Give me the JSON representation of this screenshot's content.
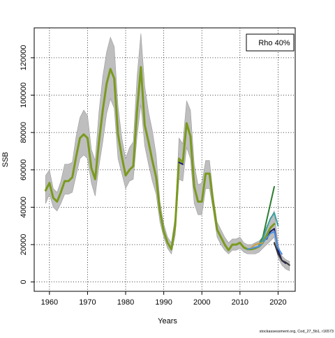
{
  "chart_data": {
    "type": "line",
    "title": "",
    "xlabel": "Years",
    "ylabel": "SSB",
    "xlim": [
      1956,
      2024.5
    ],
    "ylim": [
      -5000,
      136000
    ],
    "x_ticks": [
      1960,
      1970,
      1980,
      1990,
      2000,
      2010,
      2020
    ],
    "x_tick_labels": [
      "1960",
      "1970",
      "1980",
      "1990",
      "2000",
      "2010",
      "2020"
    ],
    "y_ticks": [
      0,
      20000,
      40000,
      60000,
      80000,
      100000,
      120000
    ],
    "y_tick_labels": [
      "0",
      "20000",
      "40000",
      "60000",
      "80000",
      "100000",
      "120000"
    ],
    "grid": true,
    "legend": {
      "position": "top-right",
      "text": "Rho 40%"
    },
    "footnote": "stockassessment.org, Cod_27_5b1, r16573",
    "colors": {
      "band": "#bebebe",
      "main": "#7a9a1e",
      "peel1": "#1a1a6e",
      "peel2": "#333333",
      "peel3": "#2e7d32",
      "peel4": "#3aa0a0",
      "peel5": "#4a90e2",
      "peel6": "#c8a040"
    },
    "confidence_band": {
      "x": [
        1959,
        1960,
        1961,
        1962,
        1963,
        1964,
        1965,
        1966,
        1967,
        1968,
        1969,
        1970,
        1971,
        1972,
        1973,
        1974,
        1975,
        1976,
        1977,
        1978,
        1979,
        1980,
        1981,
        1982,
        1983,
        1984,
        1985,
        1986,
        1987,
        1988,
        1989,
        1990,
        1991,
        1992,
        1993,
        1994,
        1995,
        1996,
        1997,
        1998,
        1999,
        2000,
        2001,
        2002,
        2003,
        2004,
        2005,
        2006,
        2007,
        2008,
        2009,
        2010,
        2011,
        2012,
        2013,
        2014,
        2015,
        2016,
        2017,
        2018,
        2019,
        2020,
        2021,
        2022,
        2023
      ],
      "lower": [
        42000,
        47000,
        40000,
        38000,
        42000,
        47000,
        47000,
        48000,
        57000,
        66000,
        68000,
        66000,
        53000,
        46000,
        62000,
        75000,
        90000,
        98000,
        93000,
        66000,
        58000,
        50000,
        54000,
        55000,
        78000,
        95000,
        73000,
        63000,
        54000,
        47000,
        32000,
        24000,
        18000,
        15000,
        25000,
        55000,
        54000,
        72000,
        66000,
        42000,
        36000,
        36000,
        50000,
        50000,
        38000,
        24000,
        20000,
        17000,
        15000,
        17000,
        17000,
        18000,
        16000,
        15000,
        15000,
        15000,
        16000,
        18000,
        20000,
        22000,
        24000,
        13000,
        9000,
        7000,
        6000
      ],
      "upper": [
        57000,
        60000,
        50000,
        48000,
        54000,
        63000,
        63000,
        64000,
        78000,
        88000,
        92000,
        89000,
        71000,
        65000,
        91000,
        110000,
        123000,
        131000,
        126000,
        94000,
        77000,
        66000,
        72000,
        75000,
        110000,
        133000,
        105000,
        91000,
        81000,
        68000,
        43000,
        31000,
        24000,
        21000,
        35000,
        77000,
        74000,
        97000,
        92000,
        63000,
        52000,
        53000,
        65000,
        65000,
        46000,
        32000,
        28000,
        24000,
        21000,
        23000,
        23000,
        24000,
        21000,
        20000,
        20000,
        21000,
        22000,
        24000,
        28000,
        34000,
        38000,
        20000,
        14000,
        12000,
        11000
      ]
    },
    "series": [
      {
        "color": "main",
        "width": 3,
        "x": [
          1959,
          1960,
          1961,
          1962,
          1963,
          1964,
          1965,
          1966,
          1967,
          1968,
          1969,
          1970,
          1971,
          1972,
          1973,
          1974,
          1975,
          1976,
          1977,
          1978,
          1979,
          1980,
          1981,
          1982,
          1983,
          1984,
          1985,
          1986,
          1987,
          1988,
          1989,
          1990,
          1991,
          1992,
          1993,
          1994,
          1995,
          1996,
          1997,
          1998,
          1999,
          2000,
          2001,
          2002,
          2003,
          2004,
          2005,
          2006,
          2007,
          2008,
          2009,
          2010,
          2011,
          2012,
          2013,
          2014,
          2015,
          2016,
          2017,
          2018,
          2019
        ],
        "y": [
          49000,
          53000,
          45000,
          43000,
          48000,
          54000,
          54000,
          56000,
          67000,
          77000,
          79000,
          77000,
          61000,
          55000,
          75000,
          92000,
          106000,
          114000,
          109000,
          79000,
          67000,
          57000,
          60000,
          62000,
          92000,
          115000,
          84000,
          75000,
          65000,
          56000,
          38000,
          27000,
          21000,
          17500,
          30000,
          66000,
          64000,
          85000,
          78000,
          51000,
          43000,
          43000,
          58000,
          58000,
          42000,
          28000,
          24000,
          20000,
          17000,
          20000,
          20000,
          21000,
          18500,
          17500,
          17500,
          18000,
          19000,
          21000,
          25000,
          29000,
          31000
        ]
      },
      {
        "color": "peel1",
        "width": 2,
        "x": [
          1994,
          1995
        ],
        "y": [
          64000,
          63000
        ]
      },
      {
        "color": "peel1",
        "width": 2,
        "x": [
          2017,
          2018,
          2019,
          2020,
          2021,
          2022
        ],
        "y": [
          23000,
          27000,
          28500,
          17000,
          11500,
          10000
        ]
      },
      {
        "color": "peel2",
        "width": 2,
        "x": [
          2019,
          2020,
          2021,
          2022,
          2023
        ],
        "y": [
          21000,
          15000,
          11500,
          10500,
          9000
        ]
      },
      {
        "color": "peel3",
        "width": 2,
        "x": [
          2015,
          2016,
          2017,
          2018,
          2019
        ],
        "y": [
          20000,
          24000,
          33000,
          42000,
          51000
        ]
      },
      {
        "color": "peel4",
        "width": 2,
        "x": [
          2015,
          2016,
          2017,
          2018,
          2019,
          2020
        ],
        "y": [
          19500,
          23000,
          29000,
          34000,
          37000,
          30000
        ]
      },
      {
        "color": "peel5",
        "width": 2,
        "x": [
          2012,
          2013,
          2014,
          2015,
          2016,
          2017,
          2018,
          2019,
          2020,
          2021
        ],
        "y": [
          17500,
          18000,
          18500,
          19000,
          21000,
          23500,
          26000,
          27000,
          18000,
          15000
        ]
      },
      {
        "color": "peel6",
        "width": 2,
        "x": [
          2013,
          2014,
          2015,
          2016
        ],
        "y": [
          18500,
          20000,
          20500,
          21000
        ]
      }
    ]
  }
}
